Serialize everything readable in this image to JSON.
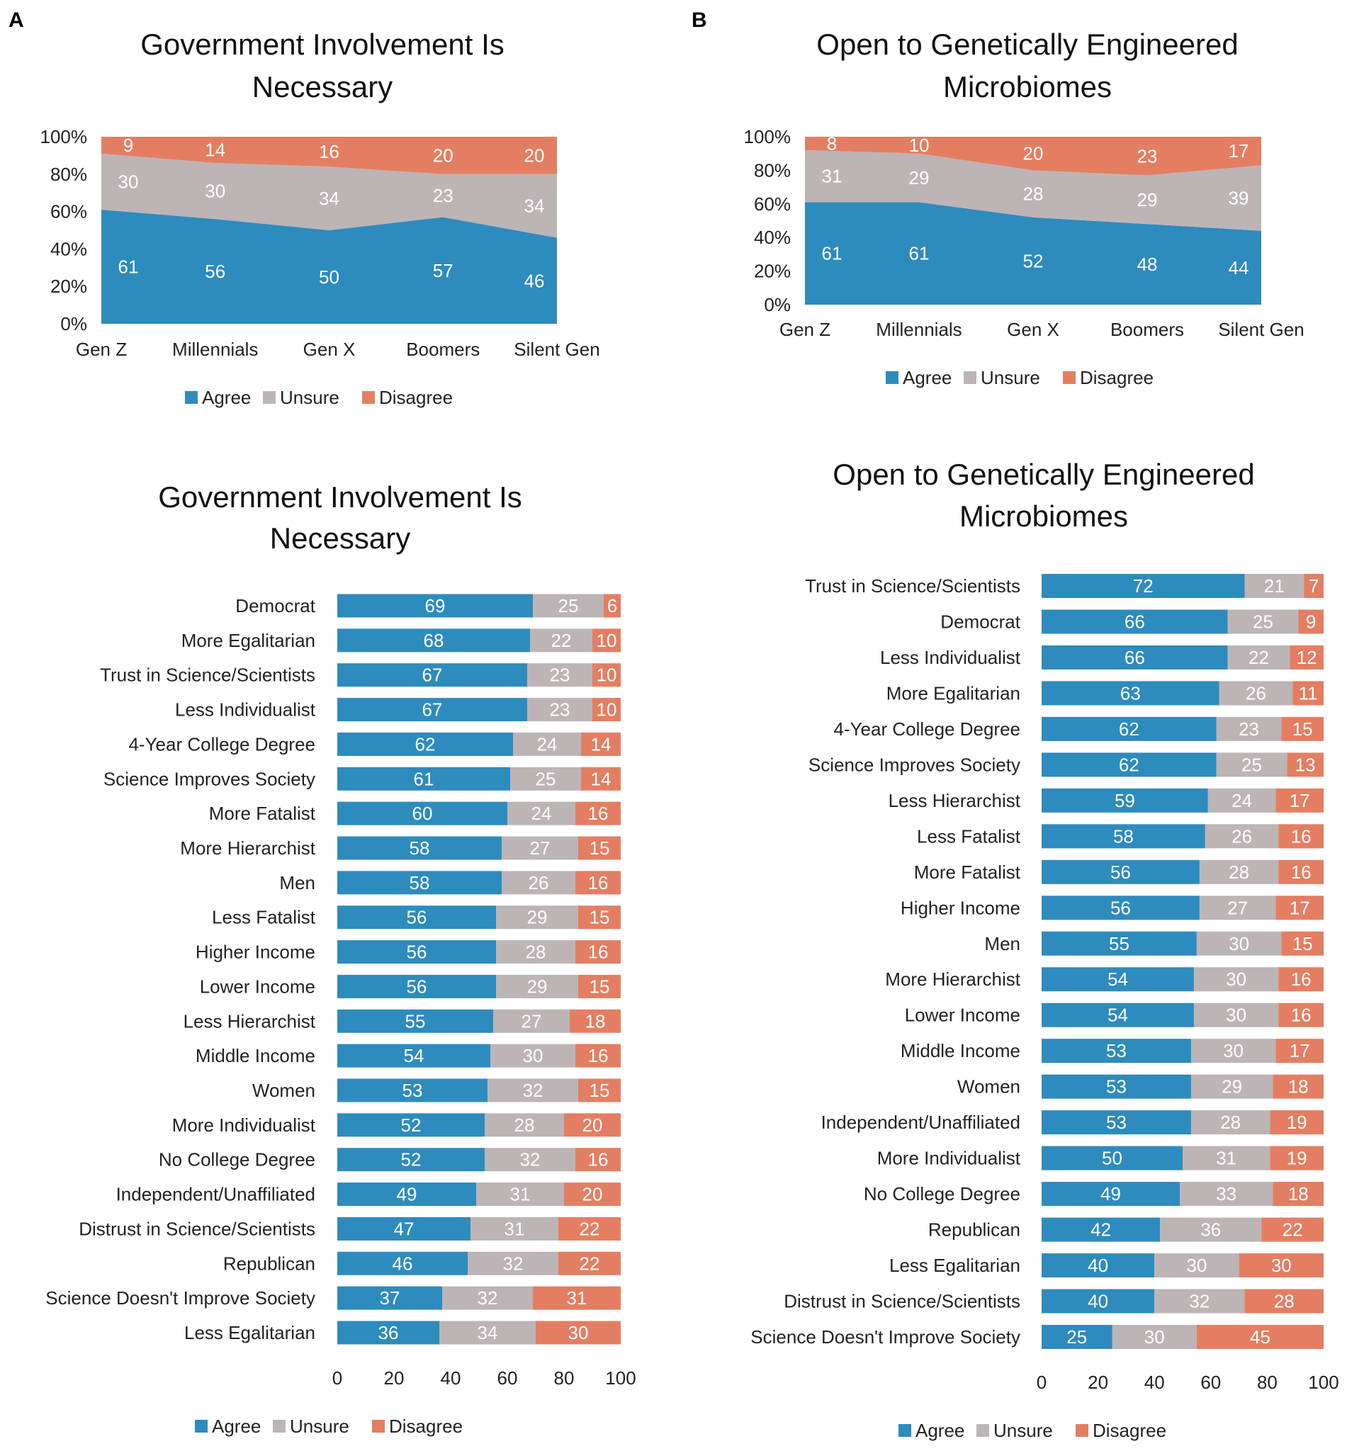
{
  "panels": {
    "a": "A",
    "b": "B"
  },
  "colors": {
    "agree": "#2e8bbd",
    "unsure": "#bdb4b6",
    "disagree": "#e47e62"
  },
  "legend": [
    "Agree",
    "Unsure",
    "Disagree"
  ],
  "chart_data": [
    {
      "id": "area_gov",
      "type": "area",
      "stacked": true,
      "title": [
        "Government Involvement Is",
        "Necessary"
      ],
      "categories": [
        "Gen Z",
        "Millennials",
        "Gen X",
        "Boomers",
        "Silent Gen"
      ],
      "series": [
        {
          "name": "Agree",
          "values": [
            61,
            56,
            50,
            57,
            46
          ]
        },
        {
          "name": "Unsure",
          "values": [
            30,
            30,
            34,
            23,
            34
          ]
        },
        {
          "name": "Disagree",
          "values": [
            9,
            14,
            16,
            20,
            20
          ]
        }
      ],
      "ylim": [
        0,
        100
      ],
      "yticks": [
        "0%",
        "20%",
        "40%",
        "60%",
        "80%",
        "100%"
      ],
      "legend_position": "bottom"
    },
    {
      "id": "area_gem",
      "type": "area",
      "stacked": true,
      "title": [
        "Open to Genetically Engineered",
        "Microbiomes"
      ],
      "categories": [
        "Gen Z",
        "Millennials",
        "Gen X",
        "Boomers",
        "Silent Gen"
      ],
      "series": [
        {
          "name": "Agree",
          "values": [
            61,
            61,
            52,
            48,
            44
          ]
        },
        {
          "name": "Unsure",
          "values": [
            31,
            29,
            28,
            29,
            39
          ]
        },
        {
          "name": "Disagree",
          "values": [
            8,
            10,
            20,
            23,
            17
          ]
        }
      ],
      "ylim": [
        0,
        100
      ],
      "yticks": [
        "0%",
        "20%",
        "40%",
        "60%",
        "80%",
        "100%"
      ],
      "legend_position": "bottom"
    },
    {
      "id": "bar_gov",
      "type": "bar",
      "orientation": "horizontal",
      "stacked": true,
      "title": [
        "Government Involvement Is",
        "Necessary"
      ],
      "categories": [
        "Democrat",
        "More Egalitarian",
        "Trust in Science/Scientists",
        "Less Individualist",
        "4-Year College Degree",
        "Science Improves Society",
        "More Fatalist",
        "More Hierarchist",
        "Men",
        "Less Fatalist",
        "Higher Income",
        "Lower Income",
        "Less Hierarchist",
        "Middle Income",
        "Women",
        "More Individualist",
        "No College Degree",
        "Independent/Unaffiliated",
        "Distrust in Science/Scientists",
        "Republican",
        "Science Doesn't Improve Society",
        "Less Egalitarian"
      ],
      "series": [
        {
          "name": "Agree",
          "values": [
            69,
            68,
            67,
            67,
            62,
            61,
            60,
            58,
            58,
            56,
            56,
            56,
            55,
            54,
            53,
            52,
            52,
            49,
            47,
            46,
            37,
            36
          ]
        },
        {
          "name": "Unsure",
          "values": [
            25,
            22,
            23,
            23,
            24,
            25,
            24,
            27,
            26,
            29,
            28,
            29,
            27,
            30,
            32,
            28,
            32,
            31,
            31,
            32,
            32,
            34
          ]
        },
        {
          "name": "Disagree",
          "values": [
            6,
            10,
            10,
            10,
            14,
            14,
            16,
            15,
            16,
            15,
            16,
            15,
            18,
            16,
            15,
            20,
            16,
            20,
            22,
            22,
            31,
            30
          ]
        }
      ],
      "xlim": [
        0,
        100
      ],
      "xticks": [
        "0",
        "20",
        "40",
        "60",
        "80",
        "100"
      ],
      "legend_position": "bottom"
    },
    {
      "id": "bar_gem",
      "type": "bar",
      "orientation": "horizontal",
      "stacked": true,
      "title": [
        "Open to Genetically Engineered",
        "Microbiomes"
      ],
      "categories": [
        "Trust in Science/Scientists",
        "Democrat",
        "Less Individualist",
        "More Egalitarian",
        "4-Year College Degree",
        "Science Improves Society",
        "Less Hierarchist",
        "Less Fatalist",
        "More Fatalist",
        "Higher Income",
        "Men",
        "More Hierarchist",
        "Lower Income",
        "Middle Income",
        "Women",
        "Independent/Unaffiliated",
        "More Individualist",
        "No College Degree",
        "Republican",
        "Less Egalitarian",
        "Distrust in Science/Scientists",
        "Science Doesn't Improve Society"
      ],
      "series": [
        {
          "name": "Agree",
          "values": [
            72,
            66,
            66,
            63,
            62,
            62,
            59,
            58,
            56,
            56,
            55,
            54,
            54,
            53,
            53,
            53,
            50,
            49,
            42,
            40,
            40,
            25
          ]
        },
        {
          "name": "Unsure",
          "values": [
            21,
            25,
            22,
            26,
            23,
            25,
            24,
            26,
            28,
            27,
            30,
            30,
            30,
            30,
            29,
            28,
            31,
            33,
            36,
            30,
            32,
            30
          ]
        },
        {
          "name": "Disagree",
          "values": [
            7,
            9,
            12,
            11,
            15,
            13,
            17,
            16,
            16,
            17,
            15,
            16,
            16,
            17,
            18,
            19,
            19,
            18,
            22,
            30,
            28,
            45
          ]
        }
      ],
      "xlim": [
        0,
        100
      ],
      "xticks": [
        "0",
        "20",
        "40",
        "60",
        "80",
        "100"
      ],
      "legend_position": "bottom"
    }
  ]
}
